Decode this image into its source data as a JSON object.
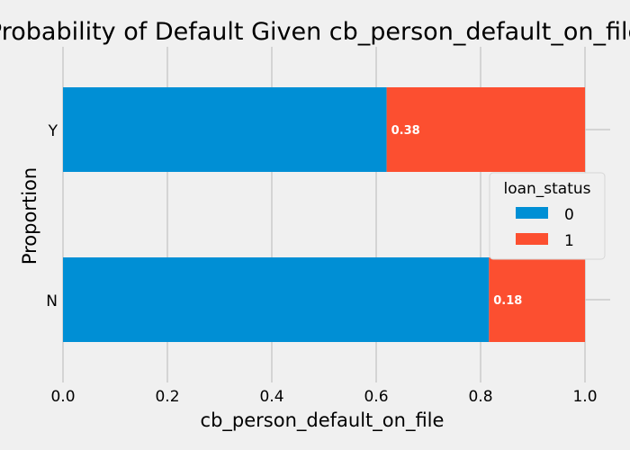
{
  "chart_data": {
    "type": "bar",
    "orientation": "horizontal",
    "stacked": true,
    "title": "Probability of Default Given cb_person_default_on_file",
    "xlabel": "cb_person_default_on_file",
    "ylabel": "Proportion",
    "categories": [
      "N",
      "Y"
    ],
    "series": [
      {
        "name": "0",
        "values": [
          0.816,
          0.62
        ],
        "color": "#008fd5"
      },
      {
        "name": "1",
        "values": [
          0.184,
          0.38
        ],
        "color": "#fc4f30"
      }
    ],
    "data_labels": [
      "0.18",
      "0.38"
    ],
    "xlim": [
      0,
      1.0
    ],
    "xticks": [
      "0.0",
      "0.2",
      "0.4",
      "0.6",
      "0.8",
      "1.0"
    ],
    "grid": true,
    "legend": {
      "title": "loan_status",
      "placement": "center-right"
    },
    "background": "#f0f0f0",
    "grid_color": "#cbcbcb"
  }
}
